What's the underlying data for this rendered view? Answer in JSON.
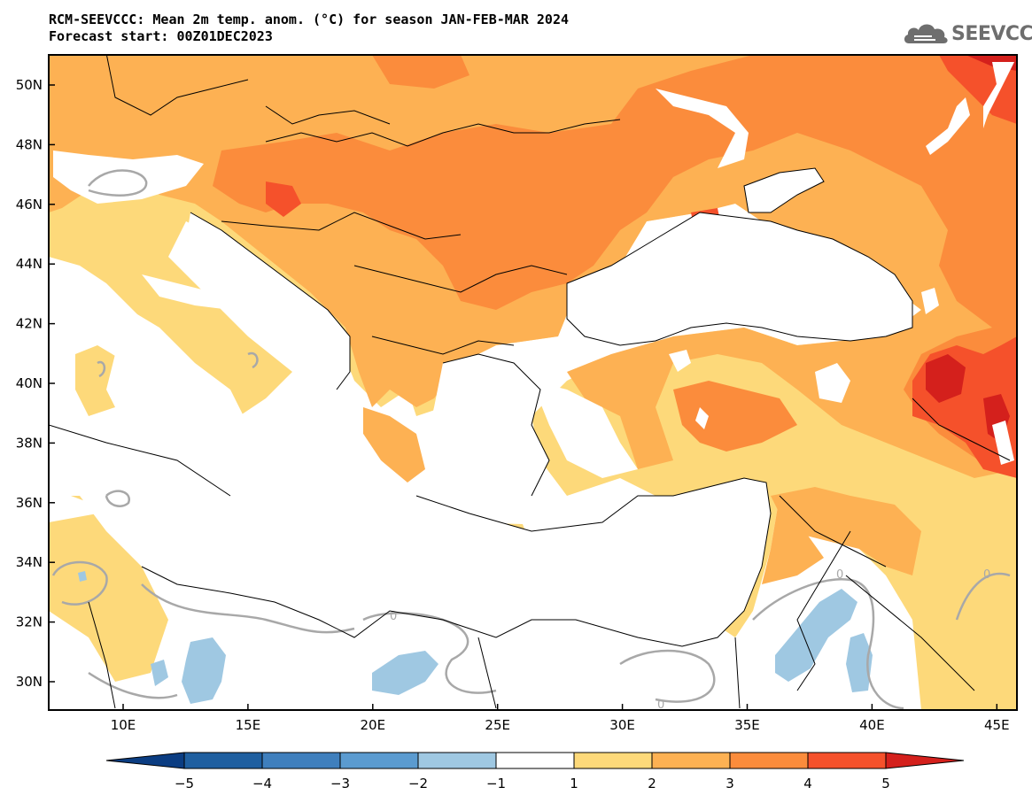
{
  "header": {
    "title_line1": "RCM-SEEVCCC: Mean 2m temp. anom. (°C) for season JAN-FEB-MAR 2024",
    "title_line2": "Forecast start: 00Z01DEC2023"
  },
  "logo": {
    "text": "SEEVCCC",
    "icon": "cloud-icon"
  },
  "map": {
    "lat_labels": [
      "50N",
      "48N",
      "46N",
      "44N",
      "42N",
      "40N",
      "38N",
      "36N",
      "34N",
      "32N",
      "30N"
    ],
    "lon_labels": [
      "10E",
      "15E",
      "20E",
      "25E",
      "30E",
      "35E",
      "40E",
      "45E"
    ],
    "contour_label": "0"
  },
  "colorbar": {
    "labels": [
      "−5",
      "−4",
      "−3",
      "−2",
      "−1",
      "1",
      "2",
      "3",
      "4",
      "5"
    ],
    "colors": [
      "#1f5fa0",
      "#3f7fbd",
      "#5b9bd0",
      "#9fc8e2",
      "#ffffff",
      "#fdd97a",
      "#fdb153",
      "#fb8c3c",
      "#f5512b"
    ],
    "low_color": "#0b3d82",
    "high_color": "#d4201c"
  },
  "palette": {
    "c_1_2": "#fdd97a",
    "c_2_3": "#fdb153",
    "c_3_4": "#fb8c3c",
    "c_4_5": "#f5512b",
    "c_5p": "#d4201c",
    "c_m2_m1": "#9fc8e2",
    "contour_zero": "#a8a8a8",
    "coast": "#000000"
  }
}
